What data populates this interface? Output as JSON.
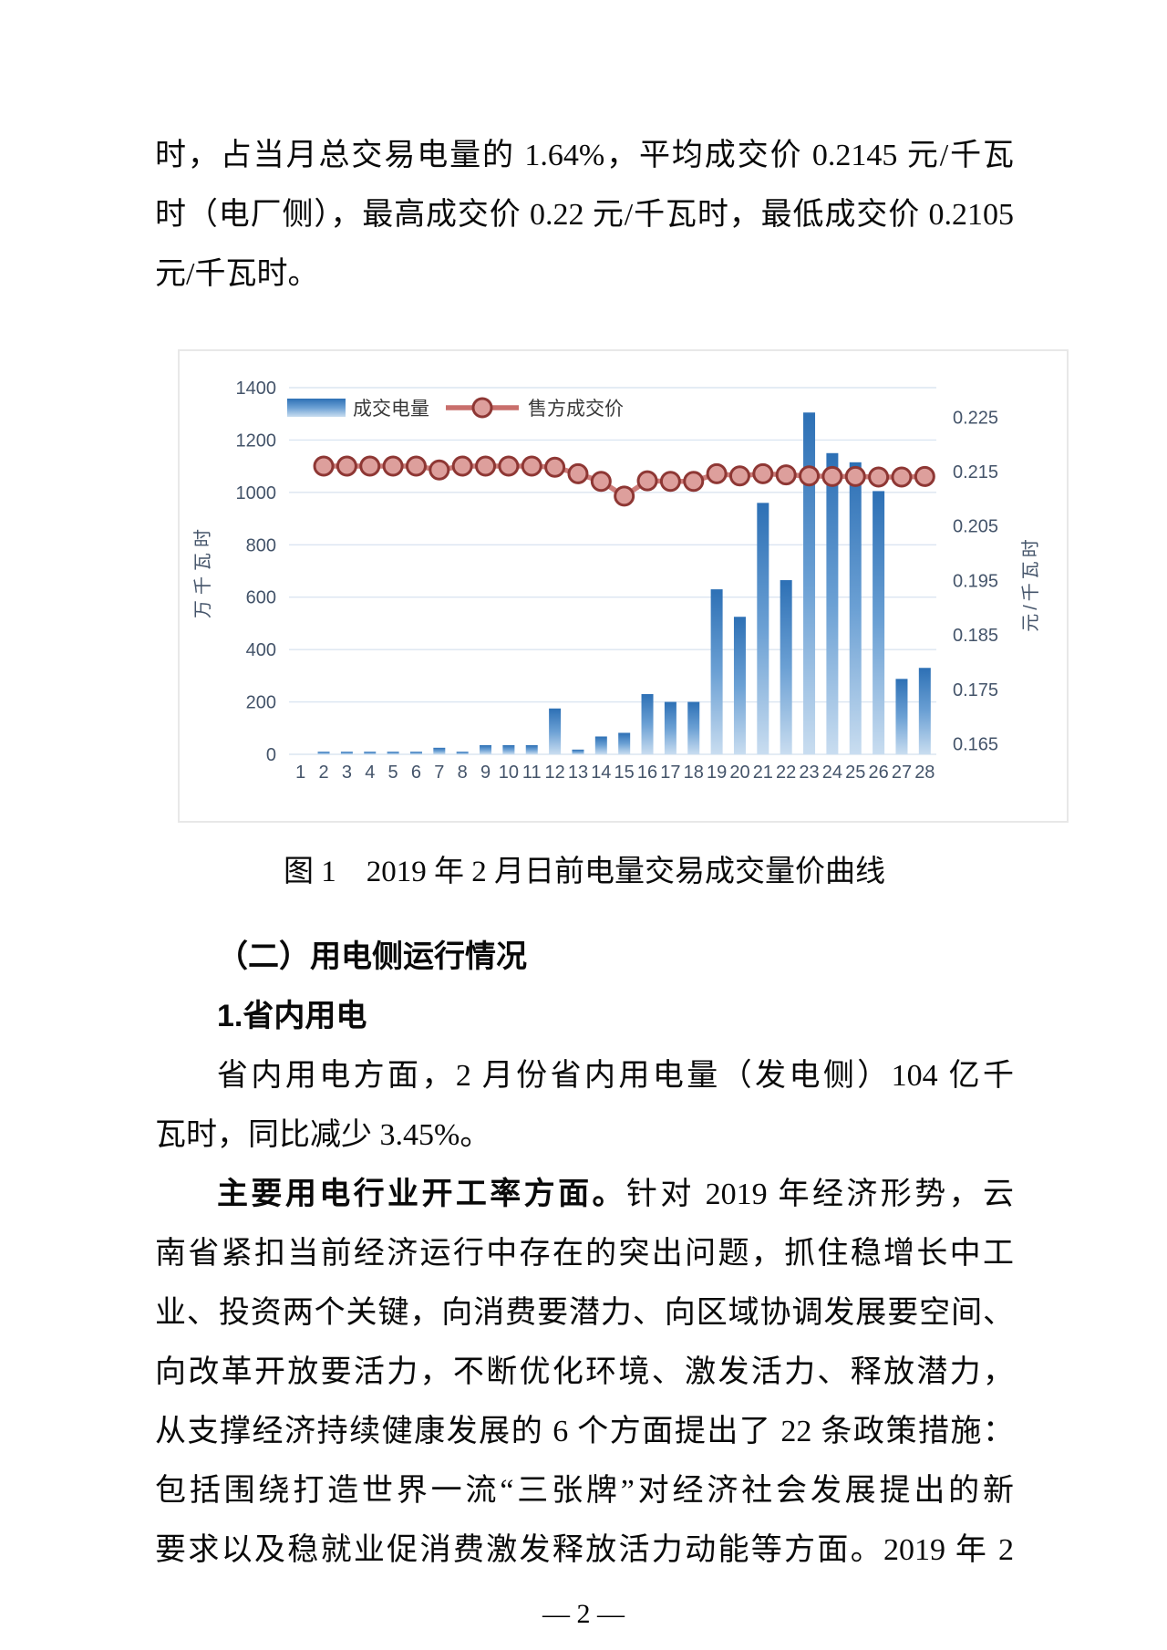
{
  "doc": {
    "top_lines": [
      "时，占当月总交易电量的 1.64%，平均成交价 0.2145 元/千瓦",
      "时（电厂侧），最高成交价 0.22 元/千瓦时，最低成交价 0.2105",
      "元/千瓦时。"
    ],
    "caption": "图 1　2019 年 2 月日前电量交易成交量价曲线",
    "section_heading": "（二）用电侧运行情况",
    "sub_heading": "1.省内用电",
    "para1_lines": [
      "省内用电方面，2 月份省内用电量（发电侧）104 亿千",
      "瓦时，同比减少 3.45%。"
    ],
    "para2_bold": "主要用电行业开工率方面。",
    "para2_rest": "针对 2019 年经济形势，云",
    "para2_lines": [
      "南省紧扣当前经济运行中存在的突出问题，抓住稳增长中工",
      "业、投资两个关键，向消费要潜力、向区域协调发展要空间、",
      "向改革开放要活力，不断优化环境、激发活力、释放潜力，",
      "从支撑经济持续健康发展的 6 个方面提出了 22 条政策措施：",
      "包括围绕打造世界一流“三张牌”对经济社会发展提出的新",
      "要求以及稳就业促消费激发释放活力动能等方面。2019 年 2"
    ],
    "page_number": "— 2 —"
  },
  "chart_data": {
    "type": "bar+line",
    "title": "2019年2月日前电量交易成交量价曲线",
    "categories": [
      "1",
      "2",
      "3",
      "4",
      "5",
      "6",
      "7",
      "8",
      "9",
      "10",
      "11",
      "12",
      "13",
      "14",
      "15",
      "16",
      "17",
      "18",
      "19",
      "20",
      "21",
      "22",
      "23",
      "24",
      "25",
      "26",
      "27",
      "28"
    ],
    "series": [
      {
        "name": "成交电量",
        "type": "bar",
        "axis": "left",
        "values": [
          0,
          10,
          10,
          10,
          10,
          10,
          25,
          10,
          35,
          35,
          35,
          175,
          18,
          68,
          82,
          230,
          200,
          200,
          630,
          525,
          960,
          665,
          1305,
          1150,
          1115,
          1005,
          288,
          330
        ]
      },
      {
        "name": "售方成交价",
        "type": "line",
        "axis": "right",
        "values": [
          null,
          0.216,
          0.216,
          0.216,
          0.216,
          0.216,
          0.2153,
          0.216,
          0.216,
          0.216,
          0.216,
          0.2158,
          0.2146,
          0.2132,
          0.2105,
          0.2133,
          0.2132,
          0.2132,
          0.2146,
          0.2142,
          0.2146,
          0.2144,
          0.2142,
          0.2141,
          0.2141,
          0.214,
          0.214,
          0.2141
        ]
      }
    ],
    "left_axis": {
      "title": "万千瓦时",
      "min": 0,
      "max": 1400,
      "ticks": [
        0,
        200,
        400,
        600,
        800,
        1000,
        1200,
        1400
      ]
    },
    "right_axis": {
      "title": "元/千瓦时",
      "min": 0.1631,
      "max": 0.2304,
      "ticks": [
        0.165,
        0.175,
        0.185,
        0.195,
        0.205,
        0.215,
        0.225
      ]
    },
    "legend_position": "top-left-inside",
    "grid": true,
    "colors": {
      "bar_top": "#2d70b5",
      "bar_mid": "#6ba0d4",
      "bar_bottom": "#c9ddf0",
      "line": "#c96f6c",
      "marker_fill": "#dd9f9c",
      "marker_stroke": "#8e3734",
      "axis_text": "#44546a",
      "legend_text": "#3a3a3a",
      "grid_line": "#dbe5f1",
      "chart_border": "#e8e8e8"
    }
  }
}
